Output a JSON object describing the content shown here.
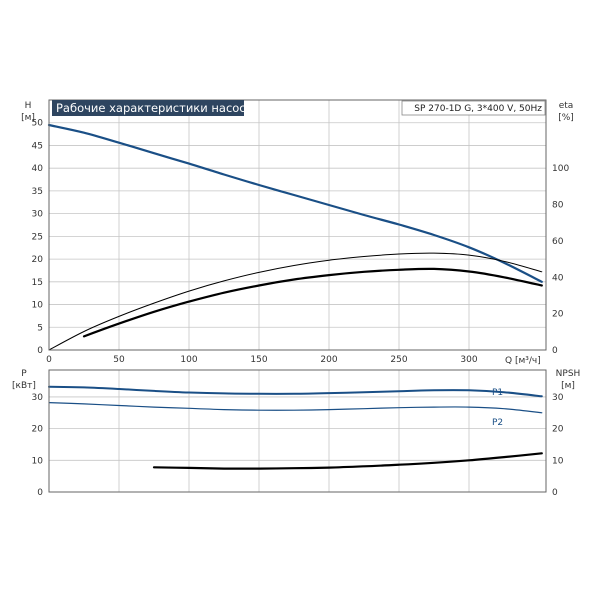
{
  "colors": {
    "blue": "#1a4f86",
    "black": "#000000",
    "grid": "#c6c6c6",
    "title_bg": "#2e4560"
  },
  "chart_data": [
    {
      "type": "line",
      "title": "Рабочие характеристики насоса",
      "model_label": "SP 270-1D G, 3*400 V, 50Hz",
      "xlabel": "Q [м³/ч]",
      "x_ticks": [
        "0",
        "50",
        "100",
        "150",
        "200",
        "250",
        "300"
      ],
      "xlim": [
        0,
        355
      ],
      "y_left": {
        "label": "H",
        "unit": "[м]",
        "ylim": [
          0,
          55
        ],
        "ticks": [
          "0",
          "5",
          "10",
          "15",
          "20",
          "25",
          "30",
          "35",
          "40",
          "45",
          "50"
        ]
      },
      "y_right": {
        "label": "eta",
        "unit": "[%]",
        "ylim": [
          0,
          137.5
        ],
        "ticks": [
          "0",
          "20",
          "40",
          "60",
          "80",
          "100"
        ]
      },
      "grid": true,
      "series": [
        {
          "axis": "left",
          "color": "#1a4f86",
          "width": 2.2,
          "points": [
            [
              0,
              49.5
            ],
            [
              25,
              47.8
            ],
            [
              50,
              45.6
            ],
            [
              75,
              43.3
            ],
            [
              100,
              41.0
            ],
            [
              125,
              38.6
            ],
            [
              150,
              36.3
            ],
            [
              175,
              34.1
            ],
            [
              200,
              31.9
            ],
            [
              225,
              29.7
            ],
            [
              250,
              27.6
            ],
            [
              275,
              25.3
            ],
            [
              300,
              22.6
            ],
            [
              325,
              19.2
            ],
            [
              352,
              15.0
            ]
          ]
        },
        {
          "axis": "right",
          "color": "#000000",
          "width": 1.0,
          "points": [
            [
              0,
              0
            ],
            [
              25,
              10.2
            ],
            [
              50,
              18.5
            ],
            [
              75,
              25.8
            ],
            [
              100,
              32.4
            ],
            [
              125,
              38.0
            ],
            [
              150,
              42.7
            ],
            [
              175,
              46.5
            ],
            [
              200,
              49.4
            ],
            [
              225,
              51.4
            ],
            [
              250,
              52.8
            ],
            [
              275,
              53.3
            ],
            [
              300,
              52.2
            ],
            [
              325,
              48.8
            ],
            [
              352,
              43.0
            ]
          ]
        },
        {
          "axis": "right",
          "color": "#000000",
          "width": 2.2,
          "points": [
            [
              25,
              7.5
            ],
            [
              50,
              14.5
            ],
            [
              75,
              21.0
            ],
            [
              100,
              26.6
            ],
            [
              125,
              31.5
            ],
            [
              150,
              35.5
            ],
            [
              175,
              38.8
            ],
            [
              200,
              41.2
            ],
            [
              225,
              43.0
            ],
            [
              250,
              44.1
            ],
            [
              275,
              44.6
            ],
            [
              300,
              43.2
            ],
            [
              325,
              40.0
            ],
            [
              352,
              35.5
            ]
          ]
        }
      ]
    },
    {
      "type": "line",
      "xlim": [
        0,
        355
      ],
      "y_left": {
        "label": "P",
        "unit": "[кВт]",
        "ylim": [
          0,
          38.5
        ],
        "ticks": [
          "0",
          "10",
          "20",
          "30"
        ]
      },
      "y_right": {
        "label": "NPSH",
        "unit": "[м]",
        "ylim": [
          0,
          38.5
        ],
        "ticks": [
          "0",
          "10",
          "20",
          "30"
        ]
      },
      "grid": true,
      "series": [
        {
          "name": "P1",
          "axis": "left",
          "color": "#1a4f86",
          "width": 2.0,
          "points": [
            [
              0,
              33.2
            ],
            [
              25,
              33.0
            ],
            [
              50,
              32.5
            ],
            [
              75,
              31.9
            ],
            [
              100,
              31.4
            ],
            [
              125,
              31.1
            ],
            [
              150,
              31.0
            ],
            [
              175,
              31.0
            ],
            [
              200,
              31.2
            ],
            [
              225,
              31.5
            ],
            [
              250,
              31.8
            ],
            [
              275,
              32.1
            ],
            [
              300,
              32.1
            ],
            [
              325,
              31.5
            ],
            [
              352,
              30.2
            ]
          ]
        },
        {
          "name": "P2",
          "axis": "left",
          "color": "#1a4f86",
          "width": 1.2,
          "points": [
            [
              0,
              28.2
            ],
            [
              25,
              27.8
            ],
            [
              50,
              27.3
            ],
            [
              75,
              26.8
            ],
            [
              100,
              26.4
            ],
            [
              125,
              26.0
            ],
            [
              150,
              25.8
            ],
            [
              175,
              25.8
            ],
            [
              200,
              26.0
            ],
            [
              225,
              26.3
            ],
            [
              250,
              26.6
            ],
            [
              275,
              26.8
            ],
            [
              300,
              26.8
            ],
            [
              325,
              26.3
            ],
            [
              352,
              25.0
            ]
          ]
        },
        {
          "axis": "right",
          "color": "#000000",
          "width": 2.2,
          "points": [
            [
              75,
              7.8
            ],
            [
              100,
              7.6
            ],
            [
              125,
              7.4
            ],
            [
              150,
              7.4
            ],
            [
              175,
              7.5
            ],
            [
              200,
              7.7
            ],
            [
              225,
              8.1
            ],
            [
              250,
              8.6
            ],
            [
              275,
              9.2
            ],
            [
              300,
              10.0
            ],
            [
              325,
              11.0
            ],
            [
              352,
              12.2
            ]
          ]
        }
      ]
    }
  ]
}
